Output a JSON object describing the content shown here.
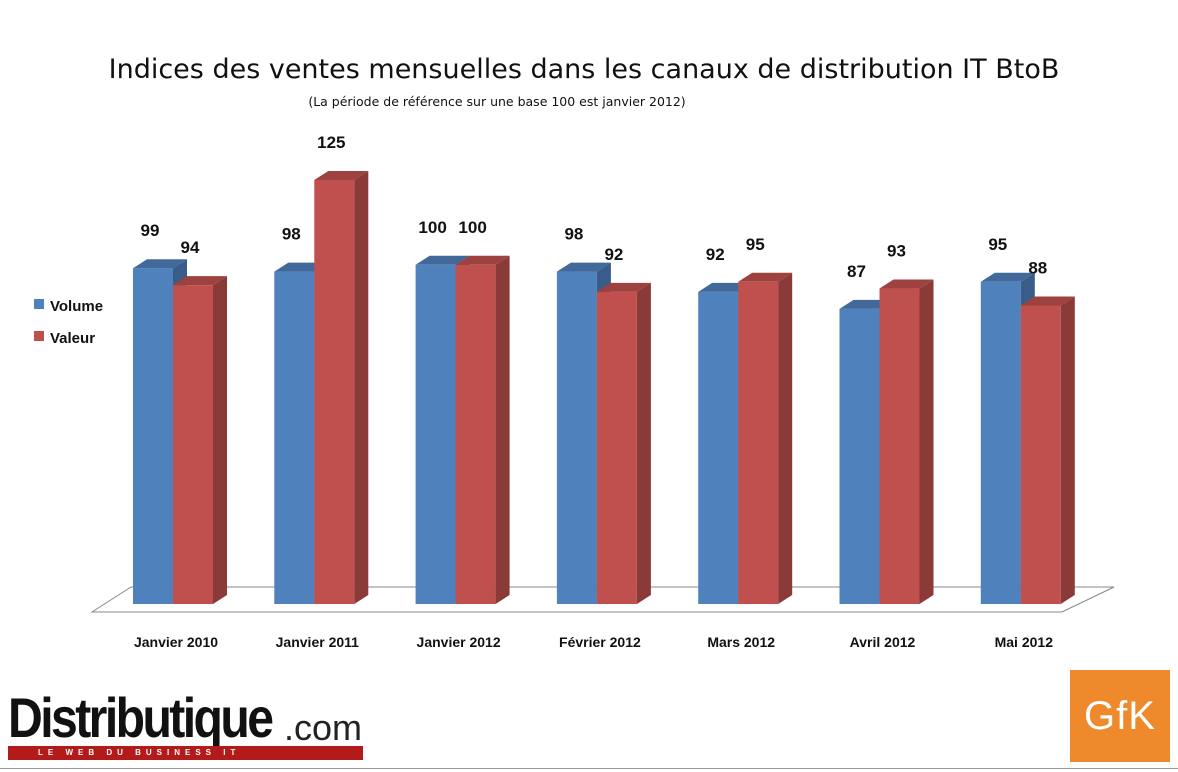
{
  "chart_data": {
    "type": "bar",
    "title": "Indices des ventes mensuelles dans les canaux de distribution IT BtoB",
    "subtitle": "(La période de référence sur une base 100 est janvier 2012)",
    "categories": [
      "Janvier 2010",
      "Janvier 2011",
      "Janvier 2012",
      "Février 2012",
      "Mars 2012",
      "Avril 2012",
      "Mai 2012"
    ],
    "series": [
      {
        "name": "Volume",
        "values": [
          99,
          98,
          100,
          98,
          92,
          87,
          95
        ],
        "color": "#4f81bd"
      },
      {
        "name": "Valeur",
        "values": [
          94,
          125,
          100,
          92,
          95,
          93,
          88
        ],
        "color": "#c0504d"
      }
    ],
    "ylim": [
      0,
      125
    ],
    "grid": false,
    "legend_position": "left",
    "style": "3d-clustered-column"
  },
  "logos": {
    "distributique": {
      "brand": "Distributique",
      "suffix": ".com",
      "tagline": "LE WEB DU BUSINESS IT"
    },
    "gfk": {
      "text": "GfK",
      "color": "#ee8a2c"
    }
  }
}
